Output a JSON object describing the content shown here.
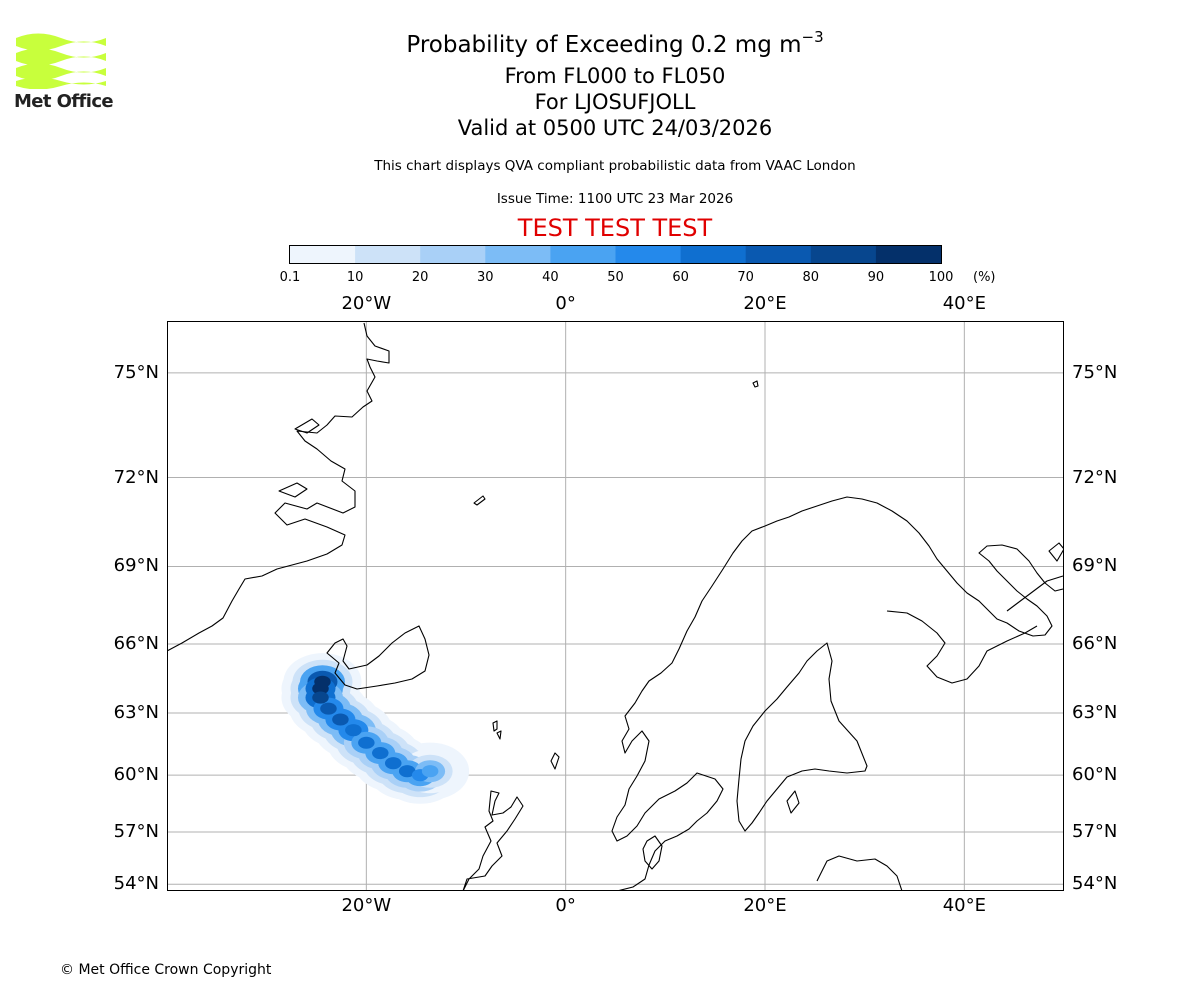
{
  "header": {
    "title_prefix": "Probability of Exceeding 0.2 mg m",
    "title_exponent": "−3",
    "flight_levels": "From FL000 to FL050",
    "location": "For LJOSUFJOLL",
    "valid_time": "Valid at 0500 UTC 24/03/2026",
    "description": "This chart displays QVA compliant probabilistic data from VAAC London",
    "issue_time": "Issue Time: 1100 UTC 23 Mar 2026",
    "test_banner": "TEST TEST TEST",
    "test_color": "#e00000"
  },
  "logo": {
    "text": "Met Office",
    "icon": "met-office-wave-logo",
    "color": "#c8ff3c"
  },
  "colorbar": {
    "unit": "(%)",
    "ticks": [
      "0.1",
      "10",
      "20",
      "30",
      "40",
      "50",
      "60",
      "70",
      "80",
      "90",
      "100"
    ],
    "colors": [
      "#eef5fd",
      "#cde2f8",
      "#a9d0f7",
      "#7cbcf6",
      "#4aa3f2",
      "#2489eb",
      "#0f6fd0",
      "#0a59b0",
      "#07468e",
      "#04306a"
    ]
  },
  "map": {
    "lon_range": [
      -40,
      50
    ],
    "lat_range": [
      53.6,
      76.3
    ],
    "lon_labels": [
      "20°W",
      "0°",
      "20°E",
      "40°E"
    ],
    "lat_labels": [
      "75°N",
      "72°N",
      "69°N",
      "66°N",
      "63°N",
      "60°N",
      "57°N",
      "54°N"
    ]
  },
  "plume": {
    "source": "LJOSUFJOLL",
    "cells": [
      {
        "lat": 64.4,
        "lon": -24.4,
        "p": 95
      },
      {
        "lat": 64.1,
        "lon": -24.6,
        "p": 92
      },
      {
        "lat": 63.7,
        "lon": -24.6,
        "p": 85
      },
      {
        "lat": 63.2,
        "lon": -23.8,
        "p": 78
      },
      {
        "lat": 62.7,
        "lon": -22.6,
        "p": 72
      },
      {
        "lat": 62.2,
        "lon": -21.3,
        "p": 68
      },
      {
        "lat": 61.6,
        "lon": -20.0,
        "p": 64
      },
      {
        "lat": 61.1,
        "lon": -18.6,
        "p": 62
      },
      {
        "lat": 60.6,
        "lon": -17.3,
        "p": 62
      },
      {
        "lat": 60.2,
        "lon": -15.9,
        "p": 66
      },
      {
        "lat": 60.0,
        "lon": -14.6,
        "p": 58
      },
      {
        "lat": 60.2,
        "lon": -13.6,
        "p": 40
      }
    ]
  },
  "footer": {
    "copyright": "© Met Office Crown Copyright"
  }
}
